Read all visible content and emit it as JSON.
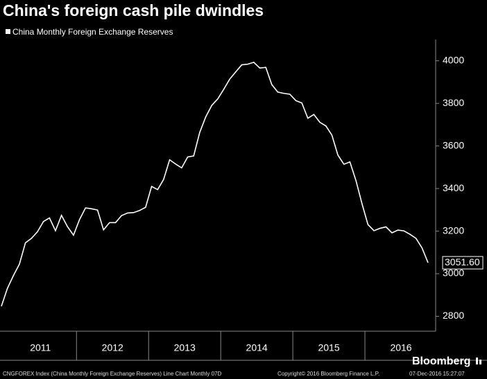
{
  "chart_data": {
    "type": "line",
    "title": "China's foreign cash pile dwindles",
    "series": [
      {
        "name": "China Monthly Foreign Exchange Reserves",
        "color": "#ffffff",
        "values": [
          2847,
          2931,
          2991,
          3045,
          3145,
          3166,
          3197,
          3245,
          3262,
          3202,
          3274,
          3221,
          3181,
          3254,
          3309,
          3305,
          3299,
          3206,
          3240,
          3240,
          3273,
          3285,
          3287,
          3297,
          3312,
          3410,
          3395,
          3443,
          3535,
          3515,
          3497,
          3548,
          3553,
          3663,
          3736,
          3790,
          3821,
          3866,
          3914,
          3948,
          3981,
          3984,
          3993,
          3966,
          3969,
          3888,
          3853,
          3847,
          3843,
          3813,
          3802,
          3730,
          3748,
          3711,
          3694,
          3651,
          3557,
          3514,
          3525,
          3438,
          3330,
          3231,
          3202,
          3213,
          3220,
          3192,
          3205,
          3201,
          3185,
          3166,
          3121,
          3051.6
        ],
        "value_labels": [
          null,
          null,
          null,
          null,
          null,
          null,
          null,
          null,
          null,
          null,
          null,
          null,
          null,
          null,
          null,
          null,
          null,
          null,
          null,
          null,
          null,
          null,
          null,
          null,
          null,
          null,
          null,
          null,
          null,
          null,
          null,
          null,
          null,
          null,
          null,
          null,
          null,
          null,
          null,
          null,
          null,
          null,
          null,
          null,
          null,
          null,
          null,
          null,
          null,
          null,
          null,
          null,
          null,
          null,
          null,
          null,
          null,
          null,
          null,
          null,
          null,
          null,
          null,
          null,
          null,
          null,
          null,
          null,
          null,
          null,
          null,
          "3051.60"
        ]
      }
    ],
    "year_labels": [
      "2011",
      "2012",
      "2013",
      "2014",
      "2015",
      "2016"
    ],
    "ylim": [
      2730,
      4100
    ],
    "yticks": [
      2800,
      3000,
      3200,
      3400,
      3600,
      3800,
      4000
    ],
    "footer_left": "CNGFOREX Index (China Monthly Foreign Exchange Reserves) Line Chart  Monthly 07D",
    "footer_mid": "Copyright© 2016 Bloomberg Finance L.P.",
    "footer_right": "07-Dec-2016 15:27:07",
    "brand": "Bloomberg"
  }
}
